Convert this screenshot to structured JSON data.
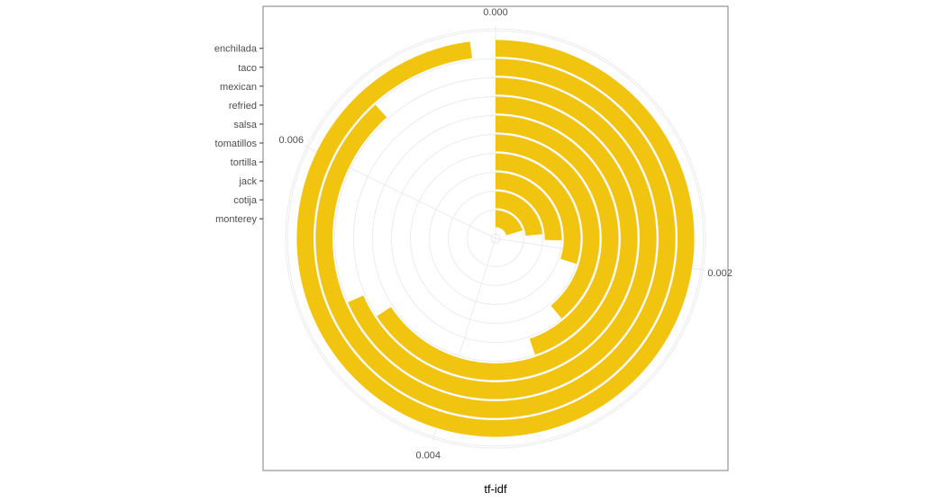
{
  "chart_data": {
    "type": "bar",
    "coord": "polar",
    "categories": [
      "enchilada",
      "taco",
      "mexican",
      "refried",
      "salsa",
      "tomatillos",
      "tortilla",
      "jack",
      "cotija",
      "monterey"
    ],
    "values": [
      0.00715,
      0.00645,
      0.005,
      0.0048,
      0.00327,
      0.00285,
      0.00218,
      0.00186,
      0.00172,
      0.00149
    ],
    "ylim": [
      0,
      0.0073
    ],
    "x_ticks": [
      {
        "value": 0,
        "label": "0.000"
      },
      {
        "value": 0.002,
        "label": "0.002"
      },
      {
        "value": 0.004,
        "label": "0.004"
      },
      {
        "value": 0.006,
        "label": "0.006"
      }
    ],
    "xlabel": "tf-idf",
    "grid": true,
    "legend": "none",
    "colors": {
      "bar": "#F1C40F",
      "grid": "#EBEBEB",
      "panel_border": "#7F7F7F",
      "tick_text": "#4D4D4D"
    }
  }
}
